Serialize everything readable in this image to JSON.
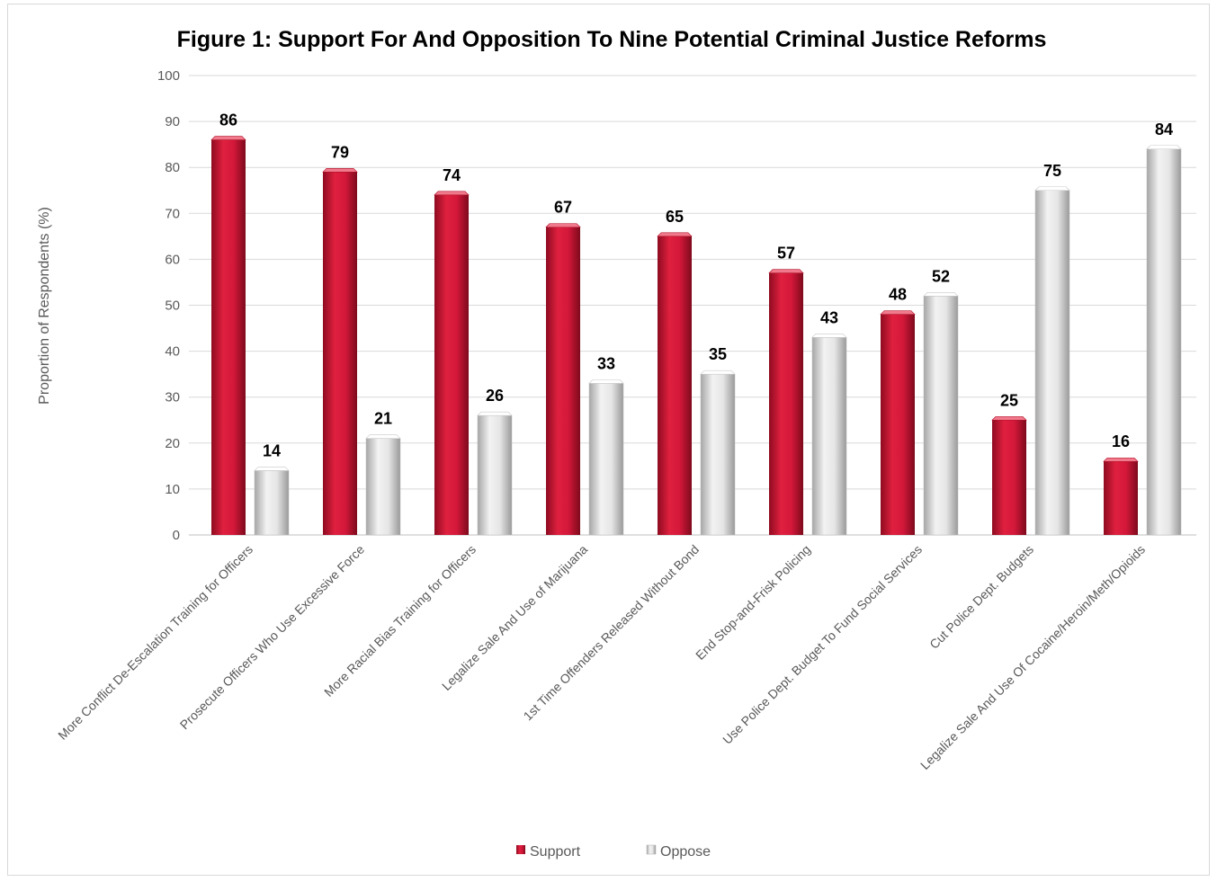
{
  "chart_data": {
    "type": "bar",
    "title": "Figure 1: Support For And Opposition To Nine Potential Criminal Justice Reforms",
    "xlabel": "",
    "ylabel": "Proportion of Respondents (%)",
    "ylim": [
      0,
      100
    ],
    "yticks": [
      0,
      10,
      20,
      30,
      40,
      50,
      60,
      70,
      80,
      90,
      100
    ],
    "grid": true,
    "legend_position": "bottom",
    "categories": [
      "More Conflict De-Escalation Training for Officers",
      "Prosecute Officers Who Use Excessive Force",
      "More Racial Bias Training for Officers",
      "Legalize Sale And Use of Marijuana",
      "1st Time Offenders Released Without Bond",
      "End Stop-and-Frisk Policing",
      "Use Police Dept. Budget To Fund Social Services",
      "Cut Police Dept. Budgets",
      "Legalize Sale And Use Of Cocaine/Heroin/Meth/Opioids"
    ],
    "series": [
      {
        "name": "Support",
        "color": "#c8102e",
        "values": [
          86,
          79,
          74,
          67,
          65,
          57,
          48,
          25,
          16
        ]
      },
      {
        "name": "Oppose",
        "color": "#d9d9d9",
        "values": [
          14,
          21,
          26,
          33,
          35,
          43,
          52,
          75,
          84
        ]
      }
    ]
  }
}
